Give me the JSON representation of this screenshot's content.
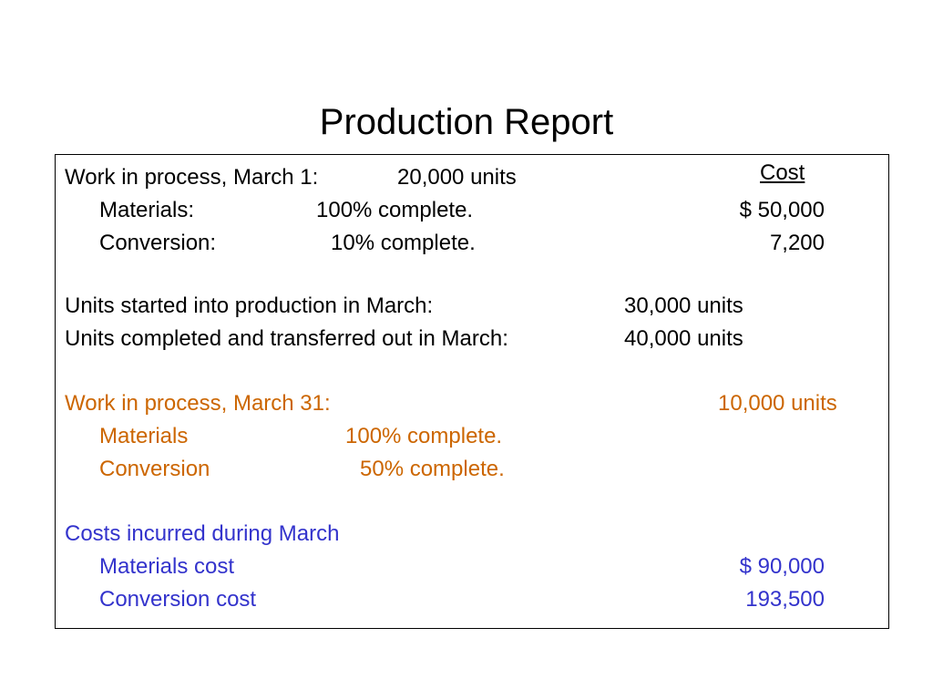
{
  "title": "Production Report",
  "cost_header": "Cost",
  "wip_beginning": {
    "label": "Work in process, March 1:",
    "units": "20,000 units",
    "materials": {
      "label": "Materials:",
      "pct": "100% complete.",
      "cost": "$  50,000"
    },
    "conversion": {
      "label": "Conversion:",
      "pct": "10% complete.",
      "cost": "7,200"
    }
  },
  "units_started": {
    "label": "Units started into production in March:",
    "value": "30,000 units"
  },
  "units_completed": {
    "label": "Units completed and transferred out in March:",
    "value": "40,000 units"
  },
  "wip_ending": {
    "label": "Work in process, March 31:",
    "units": "10,000 units",
    "materials": {
      "label": "Materials",
      "pct": "100% complete."
    },
    "conversion": {
      "label": "Conversion",
      "pct": "50% complete."
    }
  },
  "costs_incurred": {
    "label": "Costs incurred during March",
    "materials": {
      "label": "Materials cost",
      "value": "$  90,000"
    },
    "conversion": {
      "label": "Conversion cost",
      "value": "193,500"
    }
  },
  "colors": {
    "ending_wip": "#cc6600",
    "costs_incurred": "#3333cc",
    "text": "#000000"
  }
}
